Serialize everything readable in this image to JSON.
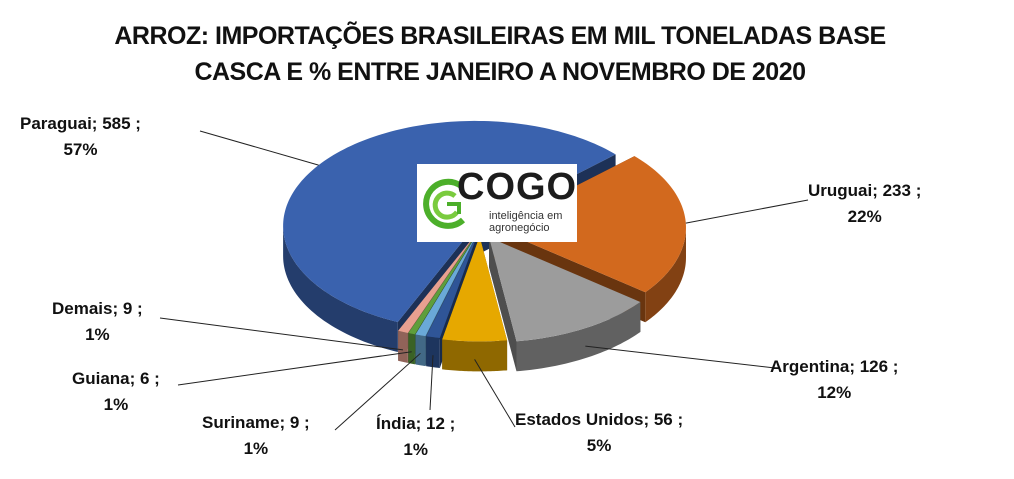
{
  "chart_data": {
    "type": "pie",
    "title_line1": "ARROZ: IMPORTAÇÕES BRASILEIRAS EM MIL TONELADAS BASE",
    "title_line2": "CASCA E % ENTRE JANEIRO A NOVEMBRO DE 2020",
    "slices": [
      {
        "name": "Uruguai",
        "value": 233,
        "percent": "22%",
        "label": "Uruguai; 233 ;",
        "pct_label": "22%",
        "color": "#D2691E"
      },
      {
        "name": "Argentina",
        "value": 126,
        "percent": "12%",
        "label": "Argentina; 126 ;",
        "pct_label": "12%",
        "color": "#9C9C9C"
      },
      {
        "name": "Estados Unidos",
        "value": 56,
        "percent": "5%",
        "label": "Estados Unidos; 56 ;",
        "pct_label": "5%",
        "color": "#E6A800"
      },
      {
        "name": "Índia",
        "value": 12,
        "percent": "1%",
        "label": "Índia; 12 ;",
        "pct_label": "1%",
        "color": "#2F5597"
      },
      {
        "name": "Suriname",
        "value": 9,
        "percent": "1%",
        "label": "Suriname; 9 ;",
        "pct_label": "1%",
        "color": "#6AA9D8"
      },
      {
        "name": "Guiana",
        "value": 6,
        "percent": "1%",
        "label": "Guiana; 6 ;",
        "pct_label": "1%",
        "color": "#5E9E3B"
      },
      {
        "name": "Demais",
        "value": 9,
        "percent": "1%",
        "label": "Demais; 9 ;",
        "pct_label": "1%",
        "color": "#E8A090"
      },
      {
        "name": "Paraguai",
        "value": 585,
        "percent": "57%",
        "label": "Paraguai; 585 ;",
        "pct_label": "57%",
        "color": "#3A62AE"
      }
    ],
    "legend": "none",
    "style": "3d-exploded"
  },
  "logo": {
    "brand": "COGO",
    "tagline_line1": "inteligência em",
    "tagline_line2": "agronegócio",
    "color": "#4CAF2A"
  }
}
